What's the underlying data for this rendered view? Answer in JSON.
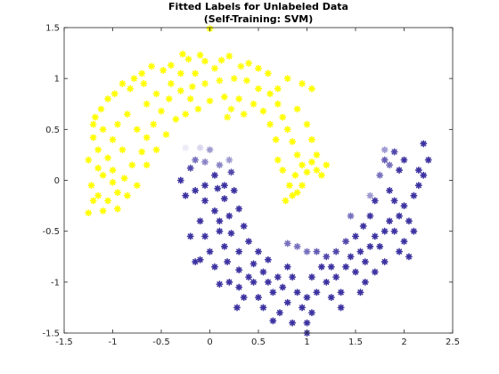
{
  "chart_data": {
    "type": "scatter",
    "title": "Fitted Labels for Unlabeled Data",
    "subtitle": "(Self-Training: SVM)",
    "xlabel": "",
    "ylabel": "",
    "xlim": [
      -1.5,
      2.5
    ],
    "ylim": [
      -1.5,
      1.5
    ],
    "xticks": [
      -1.5,
      -1,
      -0.5,
      0,
      0.5,
      1,
      1.5,
      2,
      2.5
    ],
    "yticks": [
      -1.5,
      -1,
      -0.5,
      0,
      0.5,
      1,
      1.5
    ],
    "xticklabels": [
      "-1.5",
      "-1",
      "-0.5",
      "0",
      "0.5",
      "1",
      "1.5",
      "2",
      "2.5"
    ],
    "yticklabels": [
      "-1.5",
      "-1",
      "-0.5",
      "0",
      "0.5",
      "1",
      "1.5"
    ],
    "grid": false,
    "box": true,
    "marker": "asterisk",
    "colormap": {
      "low": "#3c32a0",
      "high": "#ffff00",
      "mid": "#ffffff"
    },
    "points": [
      [
        0.0,
        1.49,
        1.0
      ],
      [
        -0.28,
        1.24,
        1.0
      ],
      [
        -0.22,
        1.19,
        1.0
      ],
      [
        -0.1,
        1.23,
        1.0
      ],
      [
        -0.05,
        1.17,
        0.98
      ],
      [
        0.12,
        1.18,
        0.98
      ],
      [
        0.2,
        1.22,
        1.0
      ],
      [
        0.32,
        1.12,
        0.97
      ],
      [
        -0.4,
        1.13,
        1.0
      ],
      [
        -0.48,
        1.08,
        1.0
      ],
      [
        -0.6,
        1.12,
        1.0
      ],
      [
        -0.7,
        1.05,
        1.0
      ],
      [
        -0.78,
        1.0,
        1.0
      ],
      [
        -0.82,
        0.9,
        1.0
      ],
      [
        -0.9,
        0.95,
        1.0
      ],
      [
        -0.98,
        0.85,
        1.0
      ],
      [
        -1.05,
        0.8,
        1.0
      ],
      [
        -1.12,
        0.7,
        1.0
      ],
      [
        -1.18,
        0.62,
        1.0
      ],
      [
        -1.1,
        0.5,
        1.0
      ],
      [
        -1.2,
        0.42,
        1.0
      ],
      [
        -1.15,
        0.3,
        1.0
      ],
      [
        -1.25,
        0.2,
        1.0
      ],
      [
        -1.05,
        0.22,
        1.0
      ],
      [
        -1.0,
        0.1,
        1.0
      ],
      [
        -1.1,
        0.05,
        1.0
      ],
      [
        -1.22,
        -0.05,
        1.0
      ],
      [
        -1.15,
        -0.15,
        1.0
      ],
      [
        -1.05,
        -0.2,
        1.0
      ],
      [
        -1.25,
        -0.32,
        1.0
      ],
      [
        -1.1,
        -0.3,
        1.0
      ],
      [
        -0.95,
        -0.12,
        1.0
      ],
      [
        -0.88,
        0.02,
        1.0
      ],
      [
        -0.8,
        0.15,
        1.0
      ],
      [
        -0.7,
        0.28,
        1.0
      ],
      [
        -0.65,
        0.42,
        1.0
      ],
      [
        -0.58,
        0.55,
        1.0
      ],
      [
        -0.5,
        0.68,
        1.0
      ],
      [
        -0.42,
        0.8,
        1.0
      ],
      [
        -0.3,
        0.88,
        1.0
      ],
      [
        -0.18,
        0.92,
        0.98
      ],
      [
        -0.05,
        0.95,
        0.97
      ],
      [
        0.1,
        0.98,
        0.97
      ],
      [
        0.25,
        1.0,
        0.97
      ],
      [
        0.38,
        0.98,
        0.98
      ],
      [
        0.5,
        0.9,
        1.0
      ],
      [
        0.62,
        0.85,
        1.0
      ],
      [
        0.7,
        0.75,
        1.0
      ],
      [
        0.75,
        0.62,
        1.0
      ],
      [
        0.8,
        0.5,
        1.0
      ],
      [
        0.85,
        0.38,
        1.0
      ],
      [
        0.9,
        0.25,
        1.0
      ],
      [
        0.95,
        0.15,
        1.0
      ],
      [
        0.88,
        0.05,
        1.0
      ],
      [
        0.82,
        -0.05,
        1.0
      ],
      [
        0.78,
        -0.2,
        1.0
      ],
      [
        0.9,
        -0.12,
        1.0
      ],
      [
        1.0,
        0.08,
        1.0
      ],
      [
        1.05,
        0.18,
        1.0
      ],
      [
        1.1,
        0.1,
        0.98
      ],
      [
        1.2,
        0.15,
        1.0
      ],
      [
        0.6,
        1.05,
        1.0
      ],
      [
        0.5,
        1.1,
        1.0
      ],
      [
        0.8,
        1.0,
        1.0
      ],
      [
        0.95,
        0.95,
        1.0
      ],
      [
        1.05,
        0.9,
        1.0
      ],
      [
        0.55,
        0.68,
        1.0
      ],
      [
        0.62,
        0.55,
        1.0
      ],
      [
        0.68,
        0.4,
        1.0
      ],
      [
        0.45,
        0.75,
        1.0
      ],
      [
        0.3,
        0.8,
        1.0
      ],
      [
        0.15,
        0.82,
        1.0
      ],
      [
        0.0,
        0.78,
        1.0
      ],
      [
        -0.12,
        0.7,
        1.0
      ],
      [
        -0.25,
        0.65,
        1.0
      ],
      [
        -0.35,
        0.6,
        1.0
      ],
      [
        -0.45,
        0.45,
        1.0
      ],
      [
        -0.55,
        0.3,
        1.0
      ],
      [
        -0.65,
        0.15,
        1.0
      ],
      [
        -0.75,
        -0.05,
        1.0
      ],
      [
        -0.85,
        -0.15,
        1.0
      ],
      [
        -0.95,
        -0.28,
        1.0
      ],
      [
        -0.75,
        0.5,
        1.0
      ],
      [
        -0.85,
        0.65,
        1.0
      ],
      [
        -0.95,
        0.55,
        1.0
      ],
      [
        -1.0,
        0.4,
        1.0
      ],
      [
        -1.2,
        0.55,
        1.0
      ],
      [
        -1.15,
        0.12,
        1.0
      ],
      [
        -0.3,
        1.05,
        1.0
      ],
      [
        -0.15,
        1.05,
        1.0
      ],
      [
        0.05,
        1.1,
        0.97
      ],
      [
        0.4,
        1.15,
        0.97
      ],
      [
        0.7,
        0.9,
        1.0
      ],
      [
        0.9,
        0.7,
        1.0
      ],
      [
        1.0,
        0.55,
        1.0
      ],
      [
        1.05,
        0.4,
        1.0
      ],
      [
        1.1,
        0.25,
        1.0
      ],
      [
        1.15,
        0.05,
        1.0
      ],
      [
        0.95,
        -0.05,
        1.0
      ],
      [
        0.85,
        -0.15,
        1.0
      ],
      [
        0.7,
        0.2,
        1.0
      ],
      [
        0.75,
        0.1,
        1.0
      ],
      [
        -0.55,
        0.85,
        1.0
      ],
      [
        -0.65,
        0.75,
        1.0
      ],
      [
        -0.4,
        0.95,
        1.0
      ],
      [
        -0.2,
        0.8,
        1.0
      ],
      [
        0.18,
        0.62,
        0.96
      ],
      [
        0.35,
        0.65,
        0.98
      ],
      [
        0.22,
        0.7,
        0.96
      ],
      [
        -0.68,
        0.95,
        1.0
      ],
      [
        -0.9,
        0.3,
        1.0
      ],
      [
        -1.0,
        -0.02,
        1.0
      ],
      [
        -1.2,
        -0.2,
        1.0
      ],
      [
        -0.52,
        -0.03,
        0.5
      ],
      [
        -0.25,
        0.32,
        0.45
      ],
      [
        -0.1,
        0.32,
        0.4
      ],
      [
        0.0,
        0.3,
        0.25
      ],
      [
        -0.15,
        0.2,
        0.15
      ],
      [
        -0.05,
        0.18,
        0.2
      ],
      [
        0.1,
        0.15,
        0.2
      ],
      [
        0.2,
        0.2,
        0.25
      ],
      [
        0.22,
        0.08,
        0.05
      ],
      [
        0.05,
        0.05,
        0.0
      ],
      [
        -0.2,
        0.12,
        0.05
      ],
      [
        -0.3,
        0.0,
        0.0
      ],
      [
        -0.25,
        -0.15,
        0.0
      ],
      [
        -0.15,
        -0.1,
        0.0
      ],
      [
        -0.05,
        -0.2,
        0.0
      ],
      [
        0.08,
        -0.08,
        0.0
      ],
      [
        0.15,
        -0.18,
        0.0
      ],
      [
        0.25,
        -0.1,
        0.0
      ],
      [
        0.3,
        -0.28,
        0.0
      ],
      [
        0.2,
        -0.35,
        0.0
      ],
      [
        0.05,
        -0.3,
        0.0
      ],
      [
        -0.1,
        -0.4,
        0.0
      ],
      [
        -0.2,
        -0.55,
        0.0
      ],
      [
        -0.05,
        -0.55,
        0.0
      ],
      [
        0.1,
        -0.5,
        0.0
      ],
      [
        0.22,
        -0.52,
        0.0
      ],
      [
        0.35,
        -0.45,
        0.0
      ],
      [
        0.4,
        -0.6,
        0.0
      ],
      [
        0.3,
        -0.7,
        0.0
      ],
      [
        0.15,
        -0.65,
        0.0
      ],
      [
        0.0,
        -0.7,
        0.0
      ],
      [
        -0.1,
        -0.78,
        0.0
      ],
      [
        0.05,
        -0.85,
        0.0
      ],
      [
        0.18,
        -0.8,
        0.0
      ],
      [
        0.3,
        -0.88,
        0.0
      ],
      [
        0.45,
        -0.82,
        0.0
      ],
      [
        0.5,
        -0.7,
        0.0
      ],
      [
        0.55,
        -0.9,
        0.0
      ],
      [
        0.6,
        -1.0,
        0.0
      ],
      [
        0.45,
        -1.0,
        0.0
      ],
      [
        0.3,
        -1.05,
        0.0
      ],
      [
        0.2,
        -1.0,
        0.0
      ],
      [
        0.1,
        -1.02,
        0.0
      ],
      [
        0.35,
        -1.15,
        0.0
      ],
      [
        0.28,
        -1.25,
        0.0
      ],
      [
        0.5,
        -1.15,
        0.0
      ],
      [
        0.65,
        -1.1,
        0.0
      ],
      [
        0.75,
        -1.05,
        0.0
      ],
      [
        0.7,
        -0.95,
        0.0
      ],
      [
        0.8,
        -0.85,
        0.0
      ],
      [
        0.85,
        -0.95,
        0.0
      ],
      [
        0.9,
        -1.1,
        0.0
      ],
      [
        0.8,
        -1.2,
        0.0
      ],
      [
        0.72,
        -1.3,
        0.0
      ],
      [
        0.95,
        -1.25,
        0.0
      ],
      [
        1.0,
        -1.15,
        0.0
      ],
      [
        1.1,
        -1.1,
        0.0
      ],
      [
        1.05,
        -0.95,
        0.0
      ],
      [
        1.15,
        -0.85,
        0.0
      ],
      [
        1.2,
        -1.0,
        0.0
      ],
      [
        1.25,
        -1.15,
        0.0
      ],
      [
        1.35,
        -1.1,
        0.0
      ],
      [
        1.3,
        -0.95,
        0.0
      ],
      [
        1.4,
        -0.85,
        0.0
      ],
      [
        1.5,
        -0.9,
        0.0
      ],
      [
        1.45,
        -0.75,
        0.0
      ],
      [
        1.55,
        -0.7,
        0.0
      ],
      [
        1.6,
        -0.8,
        0.0
      ],
      [
        1.65,
        -0.65,
        0.0
      ],
      [
        1.7,
        -0.55,
        0.0
      ],
      [
        1.75,
        -0.65,
        0.0
      ],
      [
        1.8,
        -0.5,
        0.0
      ],
      [
        1.85,
        -0.4,
        0.0
      ],
      [
        1.9,
        -0.5,
        0.0
      ],
      [
        1.95,
        -0.35,
        0.0
      ],
      [
        2.0,
        -0.25,
        0.0
      ],
      [
        2.05,
        -0.4,
        0.0
      ],
      [
        2.1,
        -0.15,
        0.0
      ],
      [
        2.15,
        -0.05,
        0.0
      ],
      [
        2.2,
        0.05,
        0.0
      ],
      [
        2.25,
        0.2,
        0.0
      ],
      [
        2.2,
        0.36,
        0.0
      ],
      [
        2.0,
        0.2,
        0.0
      ],
      [
        1.95,
        0.1,
        0.0
      ],
      [
        1.9,
        0.28,
        0.05
      ],
      [
        1.85,
        0.15,
        0.15
      ],
      [
        1.8,
        0.2,
        0.1
      ],
      [
        1.75,
        0.05,
        0.15
      ],
      [
        1.85,
        -0.1,
        0.0
      ],
      [
        1.7,
        -0.2,
        0.0
      ],
      [
        1.65,
        -0.35,
        0.0
      ],
      [
        1.58,
        -0.45,
        0.0
      ],
      [
        1.5,
        -0.55,
        0.0
      ],
      [
        1.4,
        -0.6,
        0.05
      ],
      [
        1.3,
        -0.7,
        0.05
      ],
      [
        1.2,
        -0.75,
        0.05
      ],
      [
        1.1,
        -0.7,
        0.1
      ],
      [
        1.0,
        -0.7,
        0.15
      ],
      [
        0.9,
        -0.65,
        0.15
      ],
      [
        0.8,
        -0.62,
        0.15
      ],
      [
        1.45,
        -0.35,
        0.15
      ],
      [
        1.65,
        -0.15,
        0.25
      ],
      [
        1.8,
        0.3,
        0.25
      ],
      [
        1.9,
        -0.2,
        0.0
      ],
      [
        2.0,
        -0.6,
        0.0
      ],
      [
        2.05,
        -0.75,
        0.0
      ],
      [
        2.1,
        -0.5,
        0.0
      ],
      [
        1.95,
        -0.7,
        0.0
      ],
      [
        1.8,
        -0.8,
        0.0
      ],
      [
        1.7,
        -0.9,
        0.0
      ],
      [
        1.6,
        -1.0,
        0.0
      ],
      [
        1.55,
        -1.1,
        0.0
      ],
      [
        1.05,
        -1.3,
        0.0
      ],
      [
        0.65,
        -1.38,
        0.0
      ],
      [
        0.85,
        -1.4,
        0.0
      ],
      [
        1.0,
        -1.4,
        0.0
      ],
      [
        1.0,
        -1.5,
        0.0
      ],
      [
        -0.15,
        -0.8,
        0.0
      ],
      [
        0.6,
        -0.78,
        0.0
      ],
      [
        0.4,
        -0.95,
        0.0
      ],
      [
        0.55,
        -1.25,
        0.0
      ],
      [
        1.35,
        -1.25,
        0.0
      ],
      [
        0.1,
        -0.4,
        0.0
      ],
      [
        -0.05,
        -0.05,
        0.0
      ],
      [
        0.15,
        -0.05,
        0.0
      ],
      [
        1.25,
        -0.85,
        0.0
      ],
      [
        2.15,
        0.1,
        0.0
      ]
    ]
  }
}
